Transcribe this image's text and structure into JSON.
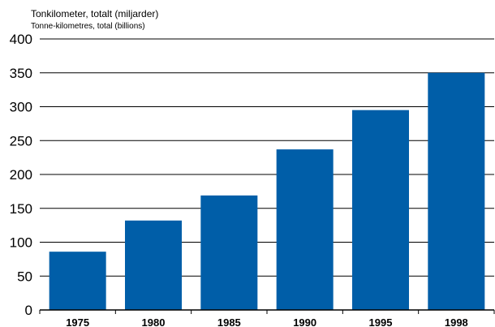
{
  "chart_data": {
    "type": "bar",
    "title": "Tonkilometer, totalt (miljarder)",
    "subtitle": "Tonne-kilometres, total (billions)",
    "categories": [
      "1975",
      "1980",
      "1985",
      "1990",
      "1995",
      "1998"
    ],
    "values": [
      86,
      132,
      169,
      237,
      295,
      350
    ],
    "ylim": [
      0,
      400
    ],
    "yticks": [
      "0",
      "50",
      "100",
      "150",
      "200",
      "250",
      "300",
      "350",
      "400"
    ],
    "bar_color": "#005ea8",
    "grid": true
  }
}
